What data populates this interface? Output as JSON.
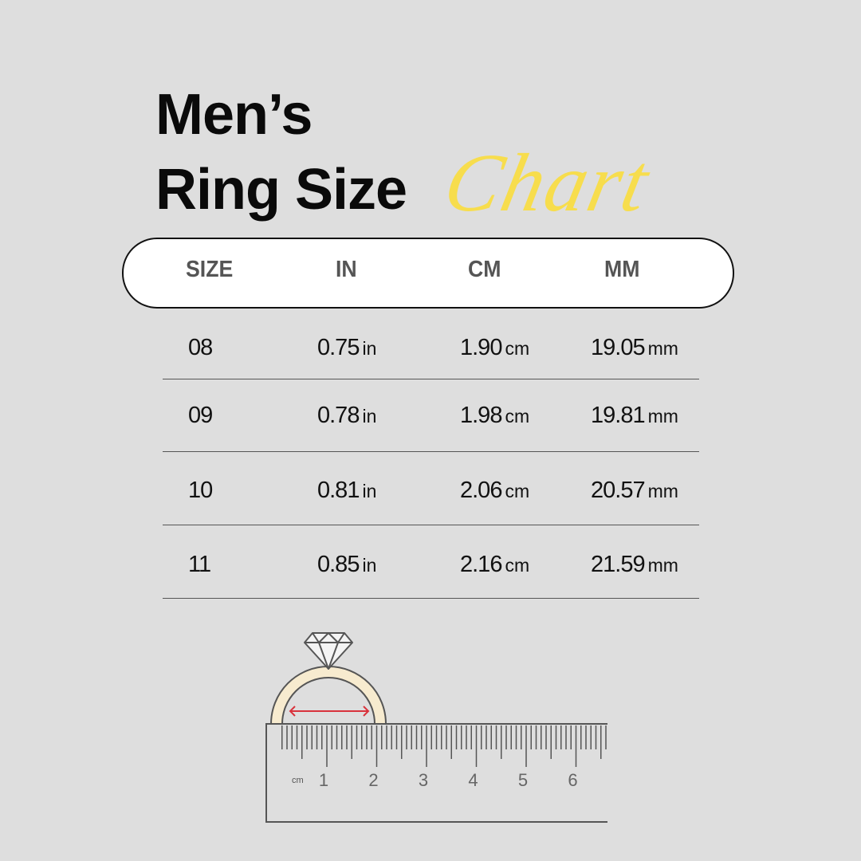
{
  "title": {
    "line1": "Men’s",
    "line2": "Ring Size",
    "accent": "Chart",
    "accent_color": "#f7dd4d"
  },
  "table": {
    "headers": [
      "SIZE",
      "IN",
      "CM",
      "MM"
    ],
    "rows": [
      {
        "size": "08",
        "in": "0.75",
        "cm": "1.90",
        "mm": "19.05"
      },
      {
        "size": "09",
        "in": "0.78",
        "cm": "1.98",
        "mm": "19.81"
      },
      {
        "size": "10",
        "in": "0.81",
        "cm": "2.06",
        "mm": "20.57"
      },
      {
        "size": "11",
        "in": "0.85",
        "cm": "2.16",
        "mm": "21.59"
      }
    ],
    "units": {
      "in": "in",
      "cm": "cm",
      "mm": "mm"
    }
  },
  "illustration": {
    "icons": [
      "diamond-ring-icon",
      "ruler-icon"
    ],
    "ruler_unit": "cm",
    "ruler_labels": [
      "1",
      "2",
      "3",
      "4",
      "5",
      "6"
    ],
    "ring_color": "#f7ebcf",
    "arrow_color": "#d9323c"
  }
}
